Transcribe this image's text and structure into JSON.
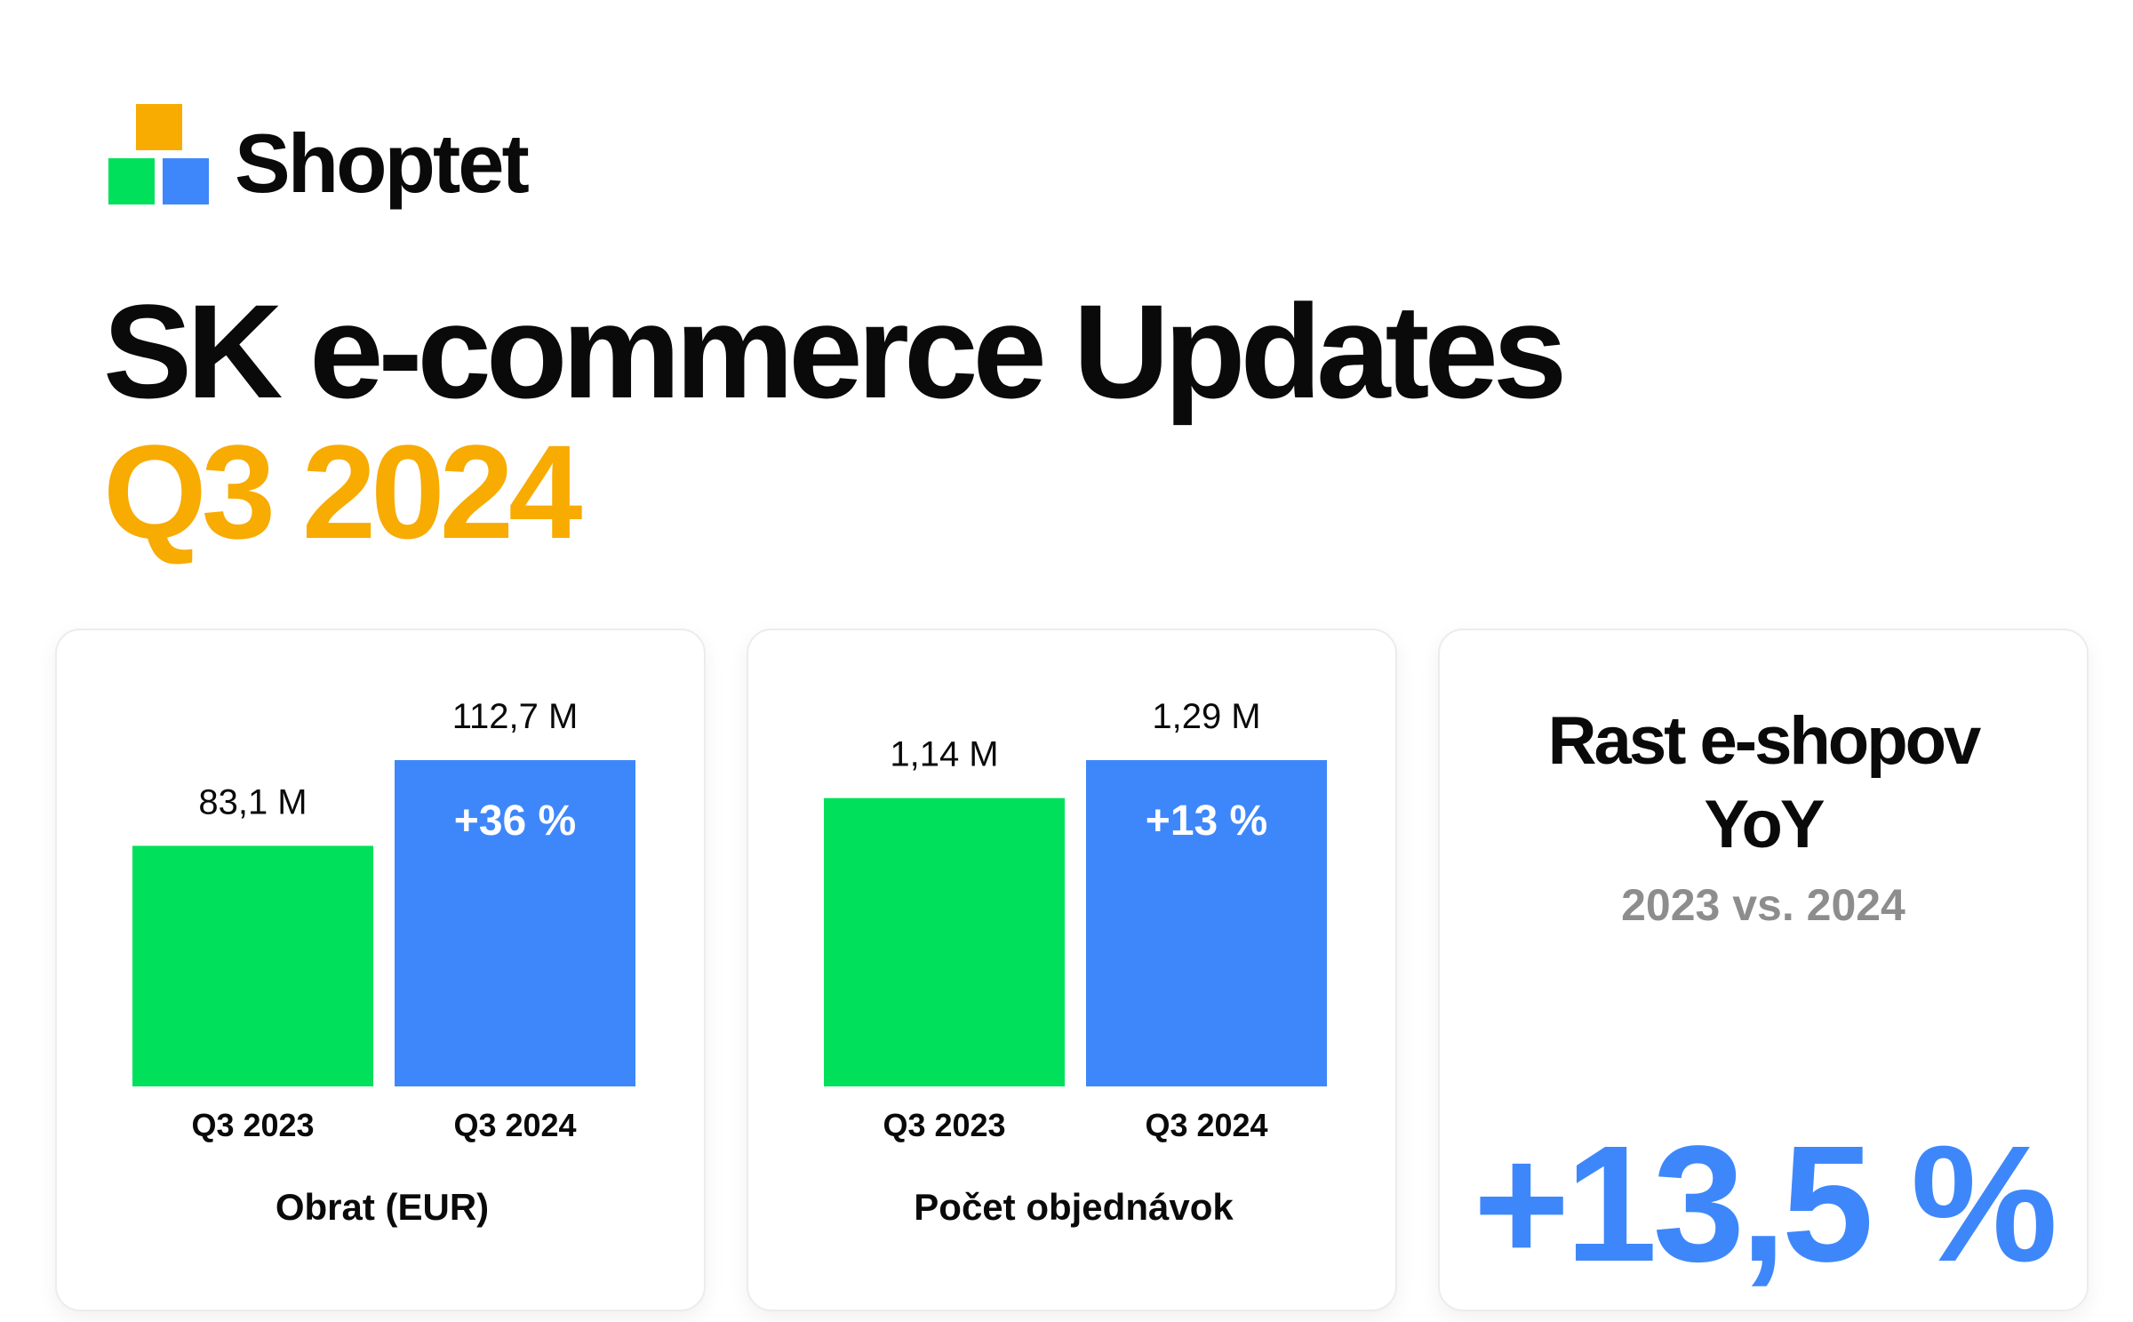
{
  "brand": {
    "name": "Shoptet",
    "colors": {
      "orange": "#f8ab00",
      "green": "#00e05a",
      "blue": "#3e87fb",
      "text": "#0a0a0a",
      "muted": "#8d8d8d"
    }
  },
  "header": {
    "title": "SK e-commerce Updates",
    "subtitle": "Q3 2024"
  },
  "chart_data": [
    {
      "type": "bar",
      "categories": [
        "Q3 2023",
        "Q3 2024"
      ],
      "values": [
        83.1,
        112.7
      ],
      "value_labels": [
        "83,1 M",
        "112,7 M"
      ],
      "bar_colors": [
        "#00e05a",
        "#3e87fb"
      ],
      "change_label": "+36 %",
      "xlabel": "Obrat  (EUR)",
      "ylim": [
        0,
        112.7
      ]
    },
    {
      "type": "bar",
      "categories": [
        "Q3 2023",
        "Q3 2024"
      ],
      "values": [
        1.14,
        1.29
      ],
      "value_labels": [
        "1,14 M",
        "1,29 M"
      ],
      "bar_colors": [
        "#00e05a",
        "#3e87fb"
      ],
      "change_label": "+13 %",
      "xlabel": "Počet objednávok",
      "ylim": [
        0,
        1.29
      ]
    }
  ],
  "stat_card": {
    "title_line1": "Rast e-shopov",
    "title_line2": "YoY",
    "subtitle": "2023 vs. 2024",
    "value": "+13,5 %"
  }
}
